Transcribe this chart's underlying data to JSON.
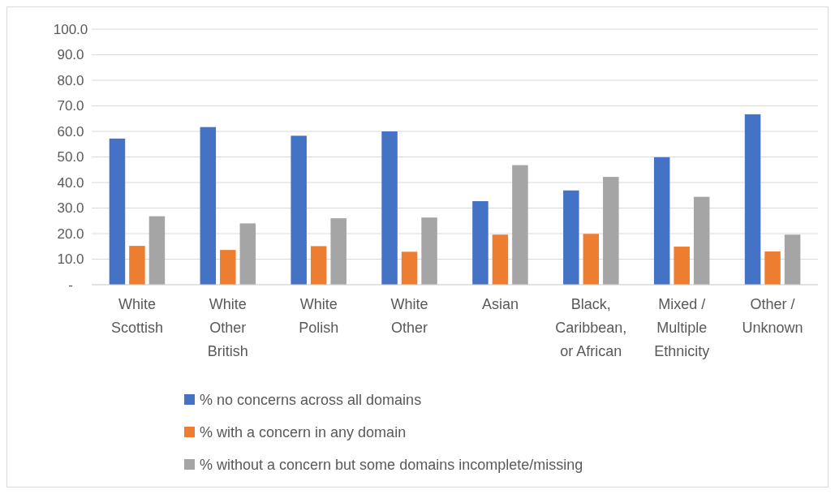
{
  "chart_data": {
    "type": "bar",
    "categories": [
      "White Scottish",
      "White Other British",
      "White Polish",
      "White Other",
      "Asian",
      "Black, Caribbean, or African",
      "Mixed / Multiple Ethnicity",
      "Other / Unknown"
    ],
    "series": [
      {
        "name": "% no concerns across all domains",
        "color": "#4472c4",
        "values": [
          57.2,
          61.7,
          58.3,
          60.0,
          32.7,
          36.9,
          49.9,
          66.7
        ]
      },
      {
        "name": "% with a concern in any domain",
        "color": "#ed7d31",
        "values": [
          15.2,
          13.6,
          15.1,
          12.9,
          19.6,
          19.9,
          14.9,
          13.0
        ]
      },
      {
        "name": "% without a concern but some domains incomplete/missing",
        "color": "#a5a5a5",
        "values": [
          26.8,
          24.0,
          26.0,
          26.3,
          46.8,
          42.2,
          34.4,
          19.6
        ]
      }
    ],
    "ylim": [
      0,
      100
    ],
    "yticks": [
      {
        "value": 0,
        "label": "-"
      },
      {
        "value": 10,
        "label": "10.0"
      },
      {
        "value": 20,
        "label": "20.0"
      },
      {
        "value": 30,
        "label": "30.0"
      },
      {
        "value": 40,
        "label": "40.0"
      },
      {
        "value": 50,
        "label": "50.0"
      },
      {
        "value": 60,
        "label": "60.0"
      },
      {
        "value": 70,
        "label": "70.0"
      },
      {
        "value": 80,
        "label": "80.0"
      },
      {
        "value": 90,
        "label": "90.0"
      },
      {
        "value": 100,
        "label": "100.0"
      }
    ],
    "grid": "y",
    "legend": "bottom"
  }
}
